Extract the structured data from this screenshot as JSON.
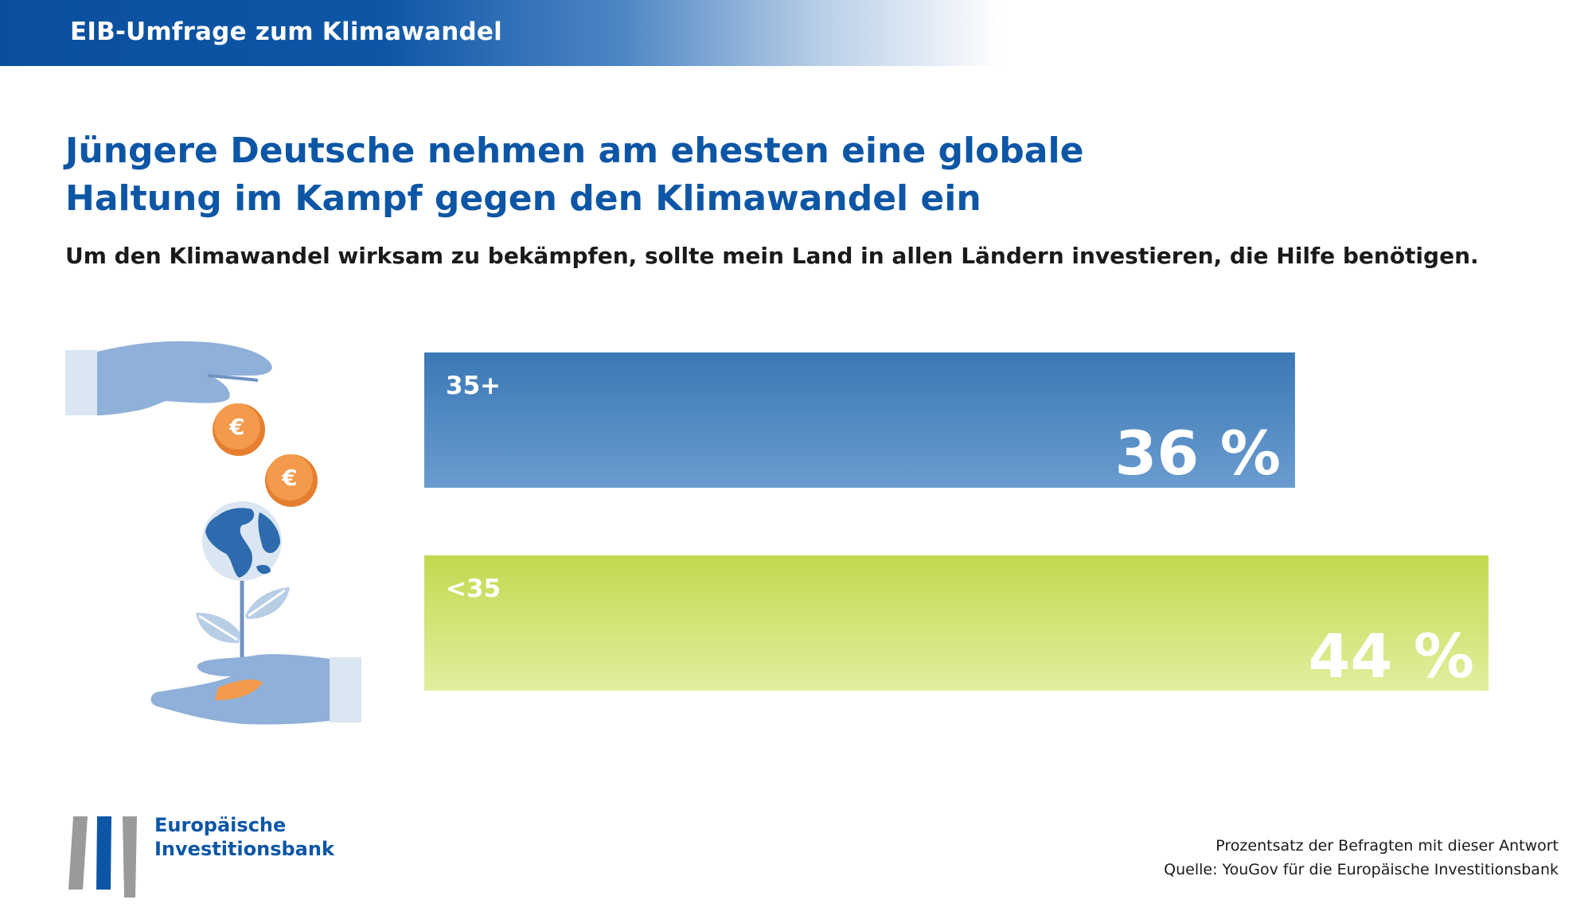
{
  "header": {
    "title": "EIB-Umfrage zum Klimawandel"
  },
  "headline": {
    "line1": "Jüngere Deutsche nehmen am ehesten eine globale",
    "line2": "Haltung im Kampf gegen den Klimawandel ein"
  },
  "question": "Um den Klimawandel wirksam zu bekämpfen, sollte mein Land in allen Ländern investieren, die Hilfe benötigen.",
  "colors": {
    "brand_blue": "#0d56a6",
    "bar_35plus_top": "#3b78b6",
    "bar_35plus_bottom": "#6a9ccf",
    "bar_under35_top": "#c2d94f",
    "bar_under35_bottom": "#e3ee9f",
    "hand": "#8fb0d8",
    "coin": "#f39a4c"
  },
  "icons": [
    "giving-hand-icon",
    "euro-coin-icon",
    "globe-icon",
    "plant-icon",
    "receiving-hand-icon",
    "eib-logo-icon"
  ],
  "chart_data": {
    "type": "bar",
    "orientation": "horizontal",
    "categories": [
      "35+",
      "<35"
    ],
    "values": [
      36,
      44
    ],
    "value_labels": [
      "36 %",
      "44 %"
    ],
    "unit": "%",
    "xlim": [
      0,
      44
    ],
    "grid": false
  },
  "logo": {
    "line1": "Europäische",
    "line2": "Investitionsbank"
  },
  "notes": {
    "line1": "Prozentsatz der Befragten mit dieser Antwort",
    "line2": "Quelle: YouGov für die Europäische Investitionsbank"
  }
}
